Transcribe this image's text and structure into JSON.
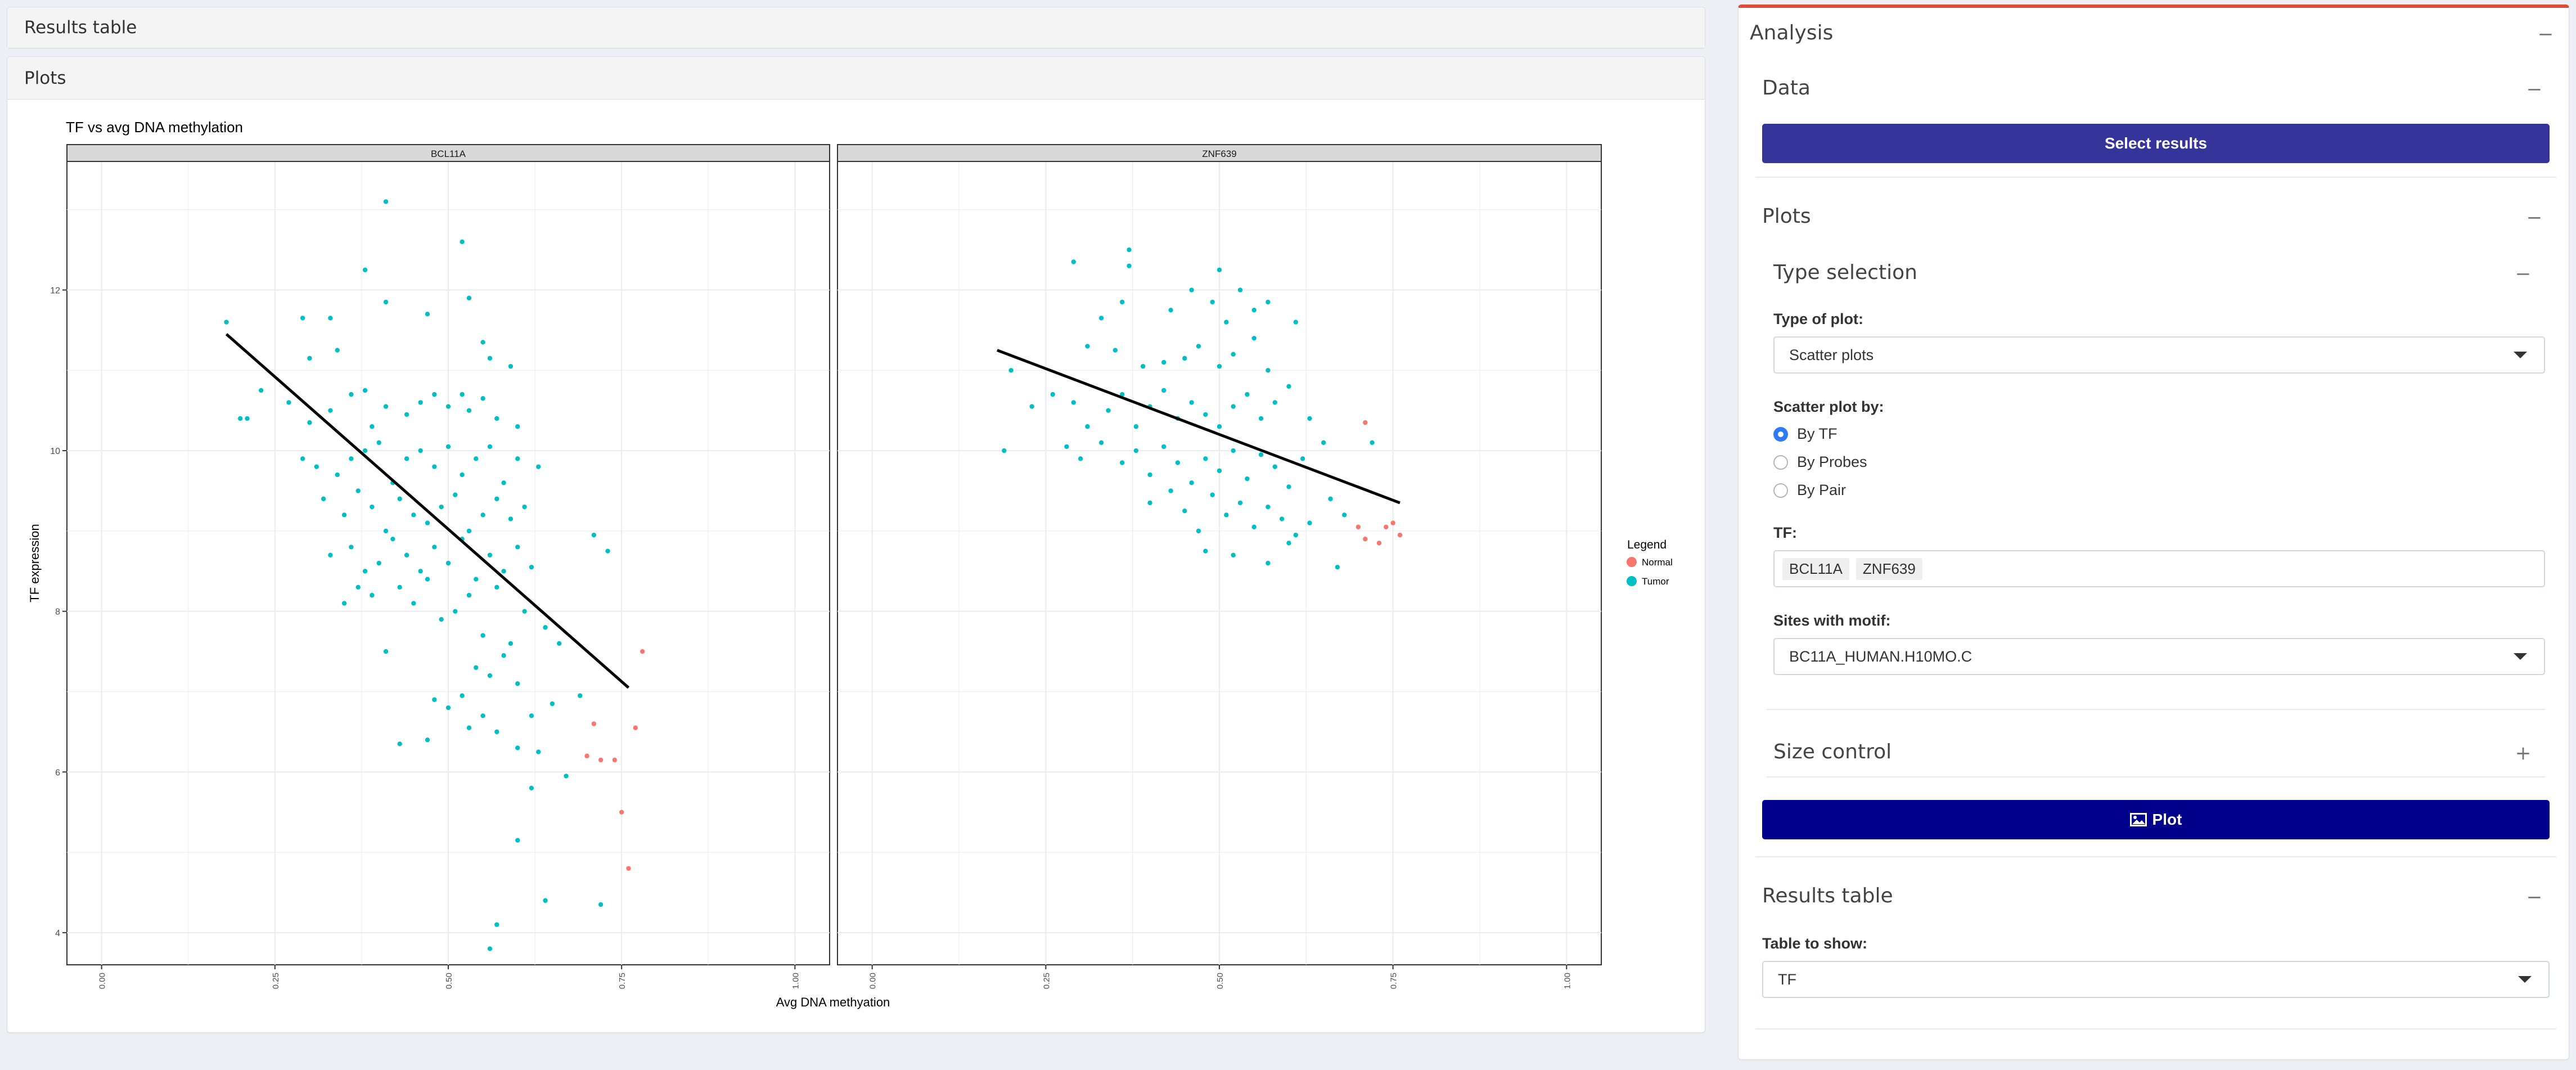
{
  "left_panels": {
    "results_table_title": "Results table",
    "plots_title": "Plots"
  },
  "plot": {
    "title": "TF vs avg DNA methylation",
    "xlabel": "Avg DNA methyation",
    "ylabel": "TF expression",
    "legend_title": "Legend",
    "legend_items": [
      {
        "label": "Normal",
        "color": "#f8766d"
      },
      {
        "label": "Tumor",
        "color": "#00bfc4"
      }
    ]
  },
  "chart_data": {
    "type": "scatter",
    "title": "TF vs avg DNA methylation",
    "xlabel": "Avg DNA methyation",
    "ylabel": "TF expression",
    "xlim": [
      -0.05,
      1.05
    ],
    "ylim": [
      3.6,
      13.6
    ],
    "x_ticks": [
      "0.00",
      "0.25",
      "0.50",
      "0.75",
      "1.00"
    ],
    "y_ticks": [
      "4",
      "6",
      "8",
      "10",
      "12"
    ],
    "series_colors": {
      "Normal": "#f8766d",
      "Tumor": "#00bfc4"
    },
    "panels": [
      {
        "name": "BCL11A",
        "fit_line": [
          [
            0.18,
            11.45
          ],
          [
            0.76,
            7.05
          ]
        ],
        "normal": [
          [
            0.71,
            6.6
          ],
          [
            0.74,
            6.15
          ],
          [
            0.77,
            6.55
          ],
          [
            0.76,
            4.8
          ],
          [
            0.75,
            5.5
          ],
          [
            0.78,
            7.5
          ],
          [
            0.7,
            6.2
          ],
          [
            0.72,
            6.15
          ]
        ],
        "tumor": [
          [
            0.41,
            13.1
          ],
          [
            0.52,
            12.6
          ],
          [
            0.38,
            12.25
          ],
          [
            0.41,
            11.85
          ],
          [
            0.47,
            11.7
          ],
          [
            0.53,
            11.9
          ],
          [
            0.18,
            11.6
          ],
          [
            0.29,
            11.65
          ],
          [
            0.33,
            11.65
          ],
          [
            0.3,
            11.15
          ],
          [
            0.34,
            11.25
          ],
          [
            0.55,
            11.35
          ],
          [
            0.56,
            11.15
          ],
          [
            0.59,
            11.05
          ],
          [
            0.21,
            10.4
          ],
          [
            0.23,
            10.75
          ],
          [
            0.27,
            10.6
          ],
          [
            0.3,
            10.35
          ],
          [
            0.33,
            10.5
          ],
          [
            0.36,
            10.7
          ],
          [
            0.38,
            10.75
          ],
          [
            0.39,
            10.3
          ],
          [
            0.41,
            10.55
          ],
          [
            0.44,
            10.45
          ],
          [
            0.46,
            10.6
          ],
          [
            0.48,
            10.7
          ],
          [
            0.5,
            10.55
          ],
          [
            0.52,
            10.7
          ],
          [
            0.53,
            10.5
          ],
          [
            0.55,
            10.65
          ],
          [
            0.57,
            10.4
          ],
          [
            0.6,
            10.3
          ],
          [
            0.2,
            10.4
          ],
          [
            0.29,
            9.9
          ],
          [
            0.31,
            9.8
          ],
          [
            0.34,
            9.7
          ],
          [
            0.36,
            9.9
          ],
          [
            0.38,
            10.0
          ],
          [
            0.4,
            10.1
          ],
          [
            0.42,
            9.6
          ],
          [
            0.44,
            9.9
          ],
          [
            0.46,
            10.0
          ],
          [
            0.48,
            9.8
          ],
          [
            0.5,
            10.05
          ],
          [
            0.52,
            9.7
          ],
          [
            0.54,
            9.9
          ],
          [
            0.56,
            10.05
          ],
          [
            0.58,
            9.6
          ],
          [
            0.6,
            9.9
          ],
          [
            0.63,
            9.8
          ],
          [
            0.32,
            9.4
          ],
          [
            0.35,
            9.2
          ],
          [
            0.37,
            9.5
          ],
          [
            0.39,
            9.3
          ],
          [
            0.41,
            9.0
          ],
          [
            0.43,
            9.4
          ],
          [
            0.45,
            9.2
          ],
          [
            0.47,
            9.1
          ],
          [
            0.49,
            9.3
          ],
          [
            0.51,
            9.45
          ],
          [
            0.53,
            9.0
          ],
          [
            0.55,
            9.2
          ],
          [
            0.57,
            9.4
          ],
          [
            0.59,
            9.15
          ],
          [
            0.61,
            9.3
          ],
          [
            0.33,
            8.7
          ],
          [
            0.36,
            8.8
          ],
          [
            0.38,
            8.5
          ],
          [
            0.4,
            8.6
          ],
          [
            0.42,
            8.9
          ],
          [
            0.44,
            8.7
          ],
          [
            0.46,
            8.5
          ],
          [
            0.48,
            8.8
          ],
          [
            0.5,
            8.6
          ],
          [
            0.52,
            8.9
          ],
          [
            0.54,
            8.4
          ],
          [
            0.56,
            8.7
          ],
          [
            0.58,
            8.5
          ],
          [
            0.6,
            8.8
          ],
          [
            0.62,
            8.55
          ],
          [
            0.35,
            8.1
          ],
          [
            0.37,
            8.3
          ],
          [
            0.39,
            8.2
          ],
          [
            0.41,
            7.5
          ],
          [
            0.43,
            8.3
          ],
          [
            0.45,
            8.1
          ],
          [
            0.47,
            8.4
          ],
          [
            0.49,
            7.9
          ],
          [
            0.51,
            8.0
          ],
          [
            0.53,
            8.2
          ],
          [
            0.55,
            7.7
          ],
          [
            0.57,
            8.3
          ],
          [
            0.59,
            7.6
          ],
          [
            0.61,
            8.0
          ],
          [
            0.64,
            7.8
          ],
          [
            0.66,
            7.6
          ],
          [
            0.71,
            8.95
          ],
          [
            0.73,
            8.75
          ],
          [
            0.69,
            6.95
          ],
          [
            0.48,
            6.9
          ],
          [
            0.5,
            6.8
          ],
          [
            0.52,
            6.95
          ],
          [
            0.54,
            7.3
          ],
          [
            0.56,
            7.2
          ],
          [
            0.58,
            7.45
          ],
          [
            0.6,
            7.1
          ],
          [
            0.62,
            6.7
          ],
          [
            0.65,
            6.85
          ],
          [
            0.43,
            6.35
          ],
          [
            0.47,
            6.4
          ],
          [
            0.53,
            6.55
          ],
          [
            0.55,
            6.7
          ],
          [
            0.57,
            6.5
          ],
          [
            0.6,
            6.3
          ],
          [
            0.63,
            6.25
          ],
          [
            0.67,
            5.95
          ],
          [
            0.62,
            5.8
          ],
          [
            0.6,
            5.15
          ],
          [
            0.64,
            4.4
          ],
          [
            0.72,
            4.35
          ],
          [
            0.57,
            4.1
          ],
          [
            0.56,
            3.8
          ]
        ]
      },
      {
        "name": "ZNF639",
        "fit_line": [
          [
            0.18,
            11.25
          ],
          [
            0.76,
            9.35
          ]
        ],
        "normal": [
          [
            0.71,
            10.35
          ],
          [
            0.74,
            9.05
          ],
          [
            0.76,
            8.95
          ],
          [
            0.71,
            8.9
          ],
          [
            0.73,
            8.85
          ],
          [
            0.75,
            9.1
          ],
          [
            0.7,
            9.05
          ]
        ],
        "tumor": [
          [
            0.29,
            12.35
          ],
          [
            0.37,
            12.5
          ],
          [
            0.37,
            12.3
          ],
          [
            0.5,
            12.25
          ],
          [
            0.46,
            12.0
          ],
          [
            0.53,
            12.0
          ],
          [
            0.57,
            11.85
          ],
          [
            0.33,
            11.65
          ],
          [
            0.36,
            11.85
          ],
          [
            0.43,
            11.75
          ],
          [
            0.49,
            11.85
          ],
          [
            0.51,
            11.6
          ],
          [
            0.55,
            11.75
          ],
          [
            0.61,
            11.6
          ],
          [
            0.31,
            11.3
          ],
          [
            0.35,
            11.25
          ],
          [
            0.39,
            11.05
          ],
          [
            0.42,
            11.1
          ],
          [
            0.45,
            11.15
          ],
          [
            0.47,
            11.3
          ],
          [
            0.5,
            11.05
          ],
          [
            0.52,
            11.2
          ],
          [
            0.55,
            11.4
          ],
          [
            0.57,
            11.0
          ],
          [
            0.2,
            11.0
          ],
          [
            0.23,
            10.55
          ],
          [
            0.26,
            10.7
          ],
          [
            0.29,
            10.6
          ],
          [
            0.31,
            10.3
          ],
          [
            0.34,
            10.5
          ],
          [
            0.36,
            10.7
          ],
          [
            0.38,
            10.3
          ],
          [
            0.4,
            10.55
          ],
          [
            0.42,
            10.75
          ],
          [
            0.44,
            10.4
          ],
          [
            0.46,
            10.6
          ],
          [
            0.48,
            10.45
          ],
          [
            0.5,
            10.3
          ],
          [
            0.52,
            10.55
          ],
          [
            0.54,
            10.7
          ],
          [
            0.56,
            10.4
          ],
          [
            0.58,
            10.6
          ],
          [
            0.6,
            10.8
          ],
          [
            0.63,
            10.4
          ],
          [
            0.19,
            10.0
          ],
          [
            0.28,
            10.05
          ],
          [
            0.3,
            9.9
          ],
          [
            0.33,
            10.1
          ],
          [
            0.36,
            9.85
          ],
          [
            0.38,
            10.0
          ],
          [
            0.4,
            9.7
          ],
          [
            0.42,
            10.05
          ],
          [
            0.44,
            9.85
          ],
          [
            0.46,
            9.6
          ],
          [
            0.48,
            9.9
          ],
          [
            0.5,
            9.75
          ],
          [
            0.52,
            10.0
          ],
          [
            0.54,
            9.65
          ],
          [
            0.56,
            9.95
          ],
          [
            0.58,
            9.8
          ],
          [
            0.6,
            9.55
          ],
          [
            0.62,
            9.9
          ],
          [
            0.65,
            10.1
          ],
          [
            0.4,
            9.35
          ],
          [
            0.43,
            9.5
          ],
          [
            0.45,
            9.25
          ],
          [
            0.47,
            9.0
          ],
          [
            0.49,
            9.45
          ],
          [
            0.51,
            9.2
          ],
          [
            0.53,
            9.35
          ],
          [
            0.55,
            9.05
          ],
          [
            0.57,
            9.3
          ],
          [
            0.59,
            9.15
          ],
          [
            0.61,
            8.95
          ],
          [
            0.63,
            9.1
          ],
          [
            0.66,
            9.4
          ],
          [
            0.68,
            9.2
          ],
          [
            0.48,
            8.75
          ],
          [
            0.52,
            8.7
          ],
          [
            0.57,
            8.6
          ],
          [
            0.6,
            8.85
          ],
          [
            0.67,
            8.55
          ],
          [
            0.72,
            10.1
          ]
        ]
      }
    ]
  },
  "analysis": {
    "title": "Analysis",
    "data_section": {
      "title": "Data",
      "select_button": "Select results"
    },
    "plots_section": {
      "title": "Plots",
      "type_selection": {
        "title": "Type selection",
        "type_of_plot_label": "Type of plot:",
        "type_of_plot_value": "Scatter plots",
        "scatter_by_label": "Scatter plot by:",
        "options": [
          "By TF",
          "By Probes",
          "By Pair"
        ],
        "selected_index": 0,
        "tf_label": "TF:",
        "tf_tags": [
          "BCL11A",
          "ZNF639"
        ],
        "sites_label": "Sites with motif:",
        "sites_value": "BC11A_HUMAN.H10MO.C"
      },
      "size_control_title": "Size control",
      "plot_button": "Plot"
    },
    "results_table_section": {
      "title": "Results table",
      "table_label": "Table to show:",
      "table_value": "TF"
    }
  },
  "colors": {
    "select_button": "#34349a",
    "plot_button": "#00008b",
    "box_accent": "#dd4b39",
    "radio_checked": "#2f7bf5"
  }
}
